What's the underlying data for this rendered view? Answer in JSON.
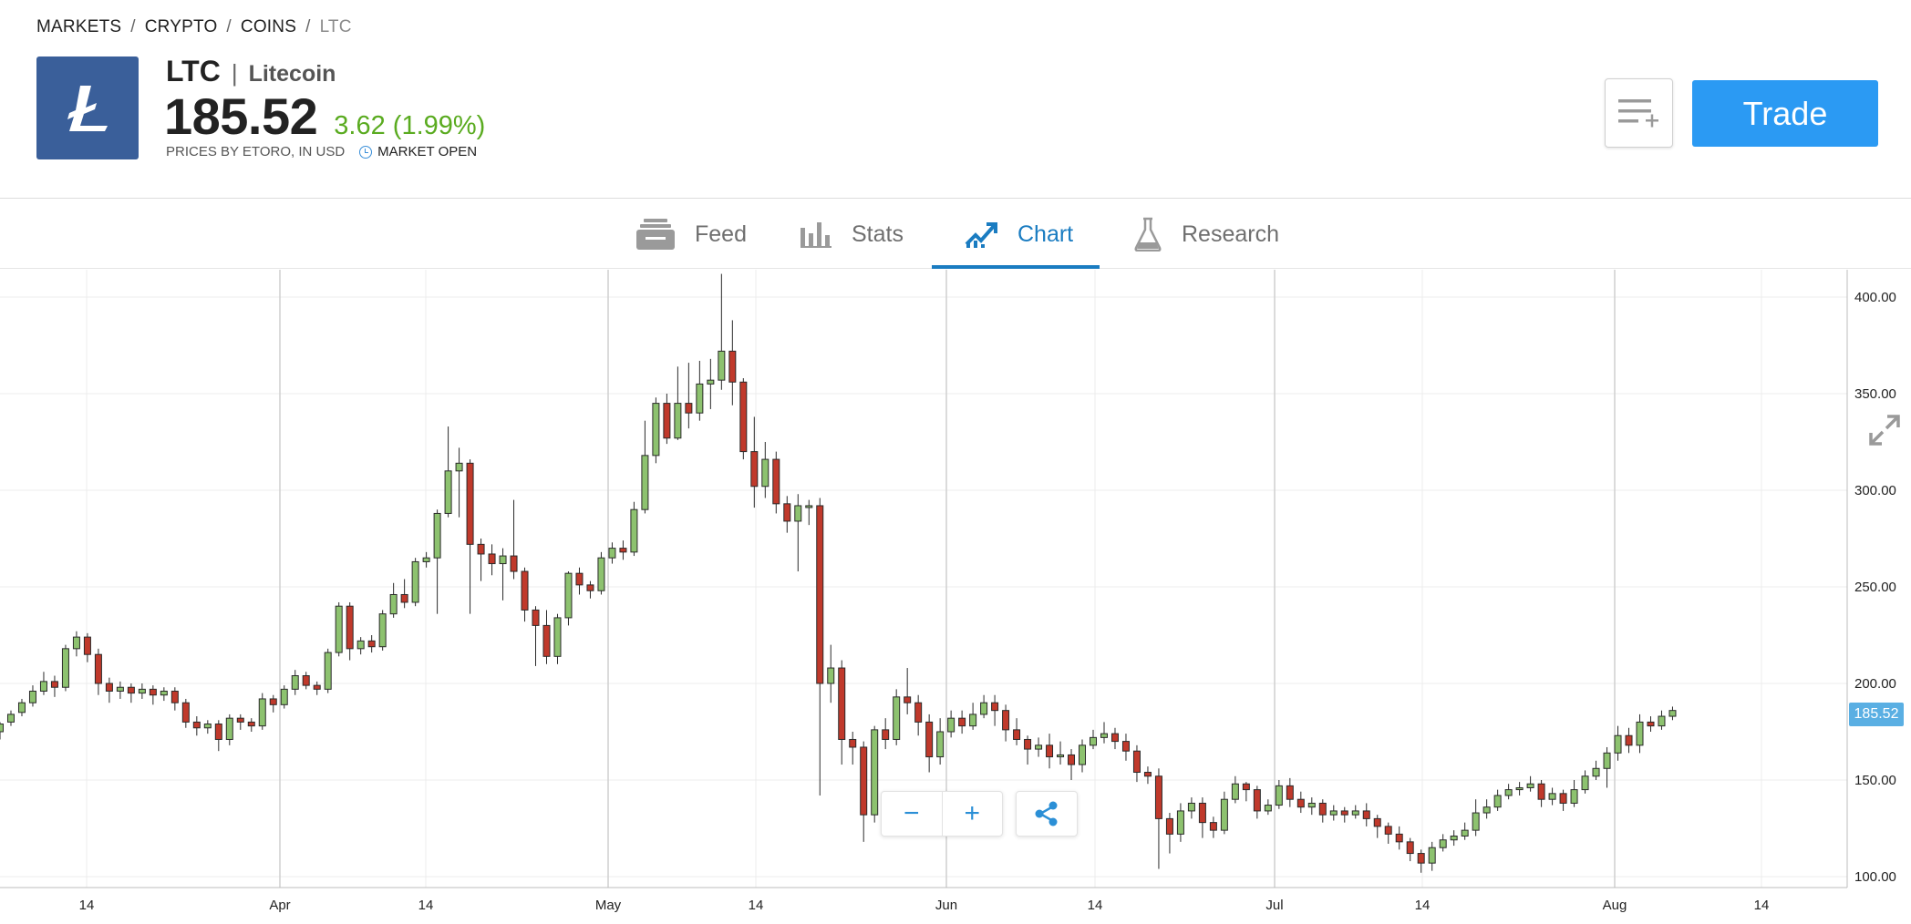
{
  "breadcrumb": [
    "MARKETS",
    "CRYPTO",
    "COINS",
    "LTC"
  ],
  "instrument": {
    "symbol": "LTC",
    "separator": "|",
    "name": "Litecoin",
    "price": "185.52",
    "change": "3.62 (1.99%)",
    "source_text": "PRICES BY ETORO, IN USD",
    "market_status": "MARKET OPEN",
    "logo_glyph": "Ł",
    "logo_color": "#3a5f9a",
    "change_color": "#5aab20"
  },
  "actions": {
    "watchlist_icon": "add-to-list-icon",
    "trade_label": "Trade",
    "trade_color": "#2b9af3"
  },
  "tabs": [
    {
      "id": "feed",
      "label": "Feed",
      "icon": "feed-icon",
      "active": false
    },
    {
      "id": "stats",
      "label": "Stats",
      "icon": "bar-chart-icon",
      "active": false
    },
    {
      "id": "chart",
      "label": "Chart",
      "icon": "trend-chart-icon",
      "active": true
    },
    {
      "id": "research",
      "label": "Research",
      "icon": "flask-icon",
      "active": false
    }
  ],
  "chart_controls": {
    "zoom_out": "−",
    "zoom_in": "+",
    "share_icon": "share-icon",
    "expand_icon": "expand-icon"
  },
  "chart_data": {
    "type": "candlestick",
    "x_tick_labels": [
      "14",
      "Apr",
      "14",
      "May",
      "14",
      "Jun",
      "14",
      "Jul",
      "14",
      "Aug",
      "14"
    ],
    "y_tick_labels": [
      "400.00",
      "350.00",
      "300.00",
      "250.00",
      "200.00",
      "150.00",
      "100.00"
    ],
    "y_ticks": [
      400,
      350,
      300,
      250,
      200,
      150,
      100
    ],
    "ylim": [
      97,
      412
    ],
    "grid": true,
    "last_price": "185.52",
    "up_color": "#8dc26f",
    "down_color": "#c0392b",
    "candles": [
      [
        175,
        179,
        171,
        180
      ],
      [
        180,
        184,
        178,
        186
      ],
      [
        185,
        190,
        183,
        192
      ],
      [
        190,
        196,
        188,
        199
      ],
      [
        196,
        201,
        194,
        206
      ],
      [
        201,
        198,
        193,
        204
      ],
      [
        198,
        218,
        196,
        220
      ],
      [
        218,
        224,
        214,
        227
      ],
      [
        224,
        215,
        211,
        226
      ],
      [
        215,
        200,
        194,
        218
      ],
      [
        200,
        196,
        190,
        203
      ],
      [
        196,
        198,
        192,
        201
      ],
      [
        198,
        195,
        190,
        200
      ],
      [
        195,
        197,
        192,
        200
      ],
      [
        197,
        194,
        189,
        199
      ],
      [
        194,
        196,
        191,
        198
      ],
      [
        196,
        190,
        186,
        198
      ],
      [
        190,
        180,
        177,
        192
      ],
      [
        180,
        177,
        173,
        183
      ],
      [
        177,
        179,
        174,
        181
      ],
      [
        179,
        171,
        165,
        181
      ],
      [
        171,
        182,
        168,
        184
      ],
      [
        182,
        180,
        176,
        184
      ],
      [
        180,
        178,
        175,
        182
      ],
      [
        178,
        192,
        176,
        195
      ],
      [
        192,
        189,
        185,
        194
      ],
      [
        189,
        197,
        187,
        199
      ],
      [
        197,
        204,
        194,
        207
      ],
      [
        204,
        199,
        197,
        206
      ],
      [
        199,
        197,
        194,
        201
      ],
      [
        197,
        216,
        195,
        218
      ],
      [
        216,
        240,
        214,
        242
      ],
      [
        240,
        218,
        212,
        242
      ],
      [
        218,
        222,
        215,
        224
      ],
      [
        222,
        219,
        216,
        225
      ],
      [
        219,
        236,
        217,
        238
      ],
      [
        236,
        246,
        234,
        252
      ],
      [
        246,
        242,
        239,
        254
      ],
      [
        242,
        263,
        240,
        265
      ],
      [
        263,
        265,
        260,
        268
      ],
      [
        265,
        288,
        236,
        290
      ],
      [
        288,
        310,
        286,
        333
      ],
      [
        310,
        314,
        286,
        322
      ],
      [
        314,
        272,
        236,
        316
      ],
      [
        272,
        267,
        253,
        275
      ],
      [
        267,
        262,
        256,
        272
      ],
      [
        262,
        266,
        243,
        270
      ],
      [
        266,
        258,
        254,
        295
      ],
      [
        258,
        238,
        232,
        260
      ],
      [
        238,
        230,
        209,
        240
      ],
      [
        230,
        214,
        210,
        238
      ],
      [
        214,
        234,
        210,
        236
      ],
      [
        234,
        257,
        230,
        258
      ],
      [
        257,
        251,
        246,
        260
      ],
      [
        251,
        248,
        244,
        253
      ],
      [
        248,
        265,
        246,
        268
      ],
      [
        265,
        270,
        262,
        273
      ],
      [
        270,
        268,
        264,
        274
      ],
      [
        268,
        290,
        266,
        294
      ],
      [
        290,
        318,
        288,
        336
      ],
      [
        318,
        345,
        314,
        348
      ],
      [
        345,
        327,
        324,
        350
      ],
      [
        327,
        345,
        326,
        364
      ],
      [
        345,
        340,
        332,
        366
      ],
      [
        340,
        355,
        336,
        367
      ],
      [
        355,
        357,
        342,
        368
      ],
      [
        357,
        372,
        352,
        412
      ],
      [
        372,
        356,
        344,
        388
      ],
      [
        356,
        320,
        316,
        358
      ],
      [
        320,
        302,
        291,
        338
      ],
      [
        302,
        316,
        296,
        325
      ],
      [
        316,
        293,
        288,
        320
      ],
      [
        293,
        284,
        278,
        297
      ],
      [
        284,
        292,
        258,
        298
      ],
      [
        292,
        292,
        282,
        295
      ],
      [
        292,
        200,
        142,
        296
      ],
      [
        200,
        208,
        190,
        220
      ],
      [
        208,
        171,
        158,
        212
      ],
      [
        171,
        167,
        158,
        175
      ],
      [
        167,
        132,
        118,
        170
      ],
      [
        132,
        176,
        128,
        178
      ],
      [
        176,
        171,
        166,
        182
      ],
      [
        171,
        193,
        168,
        197
      ],
      [
        193,
        190,
        184,
        208
      ],
      [
        190,
        180,
        173,
        194
      ],
      [
        180,
        162,
        154,
        184
      ],
      [
        162,
        175,
        158,
        182
      ],
      [
        175,
        182,
        172,
        186
      ],
      [
        182,
        178,
        174,
        186
      ],
      [
        178,
        184,
        176,
        190
      ],
      [
        184,
        190,
        182,
        194
      ],
      [
        190,
        186,
        178,
        194
      ],
      [
        186,
        176,
        170,
        189
      ],
      [
        176,
        171,
        168,
        182
      ],
      [
        171,
        166,
        158,
        173
      ],
      [
        166,
        168,
        162,
        172
      ],
      [
        168,
        162,
        156,
        174
      ],
      [
        162,
        163,
        158,
        170
      ],
      [
        163,
        158,
        150,
        166
      ],
      [
        158,
        168,
        154,
        171
      ],
      [
        168,
        172,
        166,
        176
      ],
      [
        172,
        174,
        169,
        180
      ],
      [
        174,
        170,
        166,
        177
      ],
      [
        170,
        165,
        160,
        174
      ],
      [
        165,
        154,
        149,
        168
      ],
      [
        154,
        152,
        148,
        157
      ],
      [
        152,
        130,
        104,
        156
      ],
      [
        130,
        122,
        112,
        133
      ],
      [
        122,
        134,
        118,
        138
      ],
      [
        134,
        138,
        130,
        141
      ],
      [
        138,
        128,
        120,
        141
      ],
      [
        128,
        124,
        120,
        131
      ],
      [
        124,
        140,
        122,
        144
      ],
      [
        140,
        148,
        138,
        152
      ],
      [
        148,
        145,
        139,
        149
      ],
      [
        145,
        134,
        130,
        147
      ],
      [
        134,
        137,
        132,
        140
      ],
      [
        137,
        147,
        135,
        150
      ],
      [
        147,
        140,
        136,
        151
      ],
      [
        140,
        136,
        133,
        144
      ],
      [
        136,
        138,
        132,
        141
      ],
      [
        138,
        132,
        128,
        140
      ],
      [
        132,
        134,
        129,
        137
      ],
      [
        134,
        132,
        128,
        136
      ],
      [
        132,
        134,
        130,
        137
      ],
      [
        134,
        130,
        126,
        138
      ],
      [
        130,
        126,
        120,
        132
      ],
      [
        126,
        122,
        117,
        128
      ],
      [
        122,
        118,
        114,
        126
      ],
      [
        118,
        112,
        108,
        120
      ],
      [
        112,
        107,
        102,
        114
      ],
      [
        107,
        115,
        103,
        118
      ],
      [
        115,
        119,
        113,
        122
      ],
      [
        119,
        121,
        116,
        124
      ],
      [
        121,
        124,
        119,
        128
      ],
      [
        124,
        133,
        121,
        140
      ],
      [
        133,
        136,
        130,
        140
      ],
      [
        136,
        142,
        134,
        145
      ],
      [
        142,
        145,
        140,
        148
      ],
      [
        145,
        146,
        142,
        149
      ],
      [
        146,
        148,
        144,
        152
      ],
      [
        148,
        140,
        136,
        150
      ],
      [
        140,
        143,
        137,
        146
      ],
      [
        143,
        138,
        134,
        145
      ],
      [
        138,
        145,
        136,
        150
      ],
      [
        145,
        152,
        143,
        155
      ],
      [
        152,
        156,
        150,
        160
      ],
      [
        156,
        164,
        146,
        167
      ],
      [
        164,
        173,
        160,
        178
      ],
      [
        173,
        168,
        164,
        177
      ],
      [
        168,
        180,
        164,
        184
      ],
      [
        180,
        178,
        175,
        183
      ],
      [
        178,
        183,
        176,
        186
      ],
      [
        183,
        186,
        181,
        188
      ]
    ]
  }
}
